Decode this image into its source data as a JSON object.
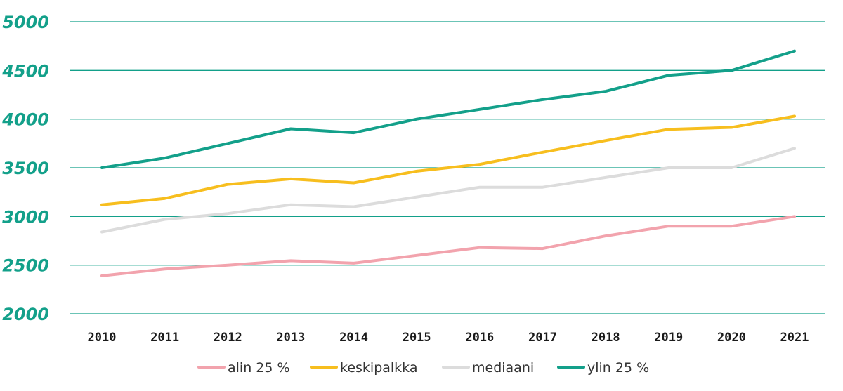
{
  "chart_data": {
    "type": "line",
    "x": [
      "2010",
      "2011",
      "2012",
      "2013",
      "2014",
      "2015",
      "2016",
      "2017",
      "2018",
      "2019",
      "2020",
      "2021"
    ],
    "ylim": [
      2000,
      5000
    ],
    "yticks": [
      2000,
      2500,
      3000,
      3500,
      4000,
      4500,
      5000
    ],
    "grid": true,
    "legend_position": "bottom",
    "series": [
      {
        "name": "alin 25 %",
        "color": "#f2a3ad",
        "values": [
          2390,
          2460,
          2500,
          2545,
          2520,
          2600,
          2680,
          2670,
          2800,
          2900,
          2900,
          3000
        ]
      },
      {
        "name": "keskipalkka",
        "color": "#f7be1e",
        "values": [
          3120,
          3185,
          3330,
          3385,
          3345,
          3465,
          3535,
          3660,
          3780,
          3895,
          3915,
          4030
        ]
      },
      {
        "name": "mediaani",
        "color": "#dcdcdc",
        "values": [
          2840,
          2970,
          3030,
          3120,
          3100,
          3200,
          3300,
          3300,
          3400,
          3500,
          3500,
          3700
        ]
      },
      {
        "name": "ylin 25 %",
        "color": "#13a08a",
        "values": [
          3500,
          3600,
          3750,
          3900,
          3860,
          4000,
          4100,
          4200,
          4285,
          4450,
          4500,
          4700
        ]
      }
    ]
  }
}
